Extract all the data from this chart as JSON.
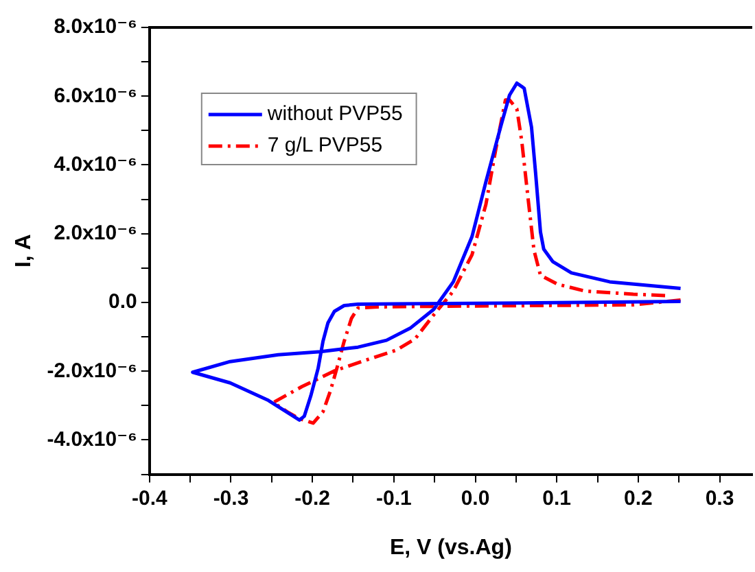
{
  "chart_data": {
    "type": "line",
    "xlabel": "E, V (vs.Ag)",
    "ylabel": "I, A",
    "xlim": [
      -0.4,
      0.34
    ],
    "ylim": [
      -5e-06,
      8e-06
    ],
    "xticks": [
      -0.4,
      {
        "value": -0.35,
        "label": null
      },
      -0.3,
      {
        "value": -0.25,
        "label": null
      },
      -0.2,
      {
        "value": -0.15,
        "label": null
      },
      -0.1,
      {
        "value": -0.05,
        "label": null
      },
      {
        "value": 0,
        "label": "0.0"
      },
      {
        "value": 0.05,
        "label": null
      },
      0.1,
      {
        "value": 0.15,
        "label": null
      },
      0.2,
      {
        "value": 0.25,
        "label": null
      },
      0.3
    ],
    "yticks": [
      {
        "value": -5e-06,
        "label": null
      },
      {
        "value": -4e-06,
        "label": "-4.0x10⁻⁶"
      },
      {
        "value": -3e-06,
        "label": null
      },
      {
        "value": -2e-06,
        "label": "-2.0x10⁻⁶"
      },
      {
        "value": -1e-06,
        "label": null
      },
      {
        "value": 0,
        "label": "0.0"
      },
      {
        "value": 1e-06,
        "label": null
      },
      {
        "value": 2e-06,
        "label": "2.0x10⁻⁶"
      },
      {
        "value": 3e-06,
        "label": null
      },
      {
        "value": 4e-06,
        "label": "4.0x10⁻⁶"
      },
      {
        "value": 5e-06,
        "label": null
      },
      {
        "value": 6e-06,
        "label": "6.0x10⁻⁶"
      },
      {
        "value": 7e-06,
        "label": null
      },
      {
        "value": 8e-06,
        "label": "8.0x10⁻⁶"
      }
    ],
    "grid": false,
    "legend": "top left",
    "marker": "none",
    "series": [
      {
        "name": "without PVP55",
        "color": "#0000ff",
        "line_style": "solid",
        "x": [
          0.252,
          0.077,
          -0.097,
          -0.144,
          -0.161,
          -0.173,
          -0.181,
          -0.187,
          -0.193,
          -0.202,
          -0.21,
          -0.216,
          -0.254,
          -0.301,
          -0.347,
          -0.301,
          -0.242,
          -0.19,
          -0.144,
          -0.109,
          -0.08,
          -0.051,
          -0.027,
          -0.004,
          0.013,
          0.031,
          0.042,
          0.051,
          0.06,
          0.069,
          0.074,
          0.08,
          0.084,
          0.095,
          0.118,
          0.165,
          0.252
        ],
        "values": [
          3e-08,
          -1e-08,
          -4e-08,
          -5e-08,
          -9e-08,
          -2.6e-07,
          -6e-07,
          -1.13e-06,
          -1.92e-06,
          -2.72e-06,
          -3.31e-06,
          -3.42e-06,
          -2.85e-06,
          -2.34e-06,
          -2.03e-06,
          -1.72e-06,
          -1.52e-06,
          -1.43e-06,
          -1.3e-06,
          -1.1e-06,
          -7.5e-07,
          -2e-07,
          6e-07,
          1.92e-06,
          3.51e-06,
          5.1e-06,
          6.03e-06,
          6.38e-06,
          6.23e-06,
          5.1e-06,
          3.77e-06,
          2.05e-06,
          1.55e-06,
          1.19e-06,
          8.6e-07,
          6e-07,
          4.1e-07
        ]
      },
      {
        "name": "7 g/L PVP55",
        "color": "#ff0000",
        "line_style": "dashed",
        "x": [
          0.252,
          0.194,
          0.077,
          -0.039,
          -0.12,
          -0.144,
          -0.152,
          -0.161,
          -0.17,
          -0.178,
          -0.187,
          -0.199,
          -0.216,
          -0.231,
          -0.248,
          -0.213,
          -0.173,
          -0.132,
          -0.097,
          -0.074,
          -0.051,
          -0.027,
          -0.004,
          0.013,
          0.025,
          0.037,
          0.042,
          0.051,
          0.057,
          0.065,
          0.072,
          0.08,
          0.101,
          0.135,
          0.194,
          0.234
        ],
        "values": [
          7e-08,
          -7e-08,
          -9e-08,
          -1.1e-07,
          -1.3e-07,
          -1.6e-07,
          -4.6e-07,
          -1.13e-06,
          -1.92e-06,
          -2.58e-06,
          -3.18e-06,
          -3.51e-06,
          -3.38e-06,
          -3.18e-06,
          -2.91e-06,
          -2.45e-06,
          -1.99e-06,
          -1.66e-06,
          -1.39e-06,
          -1.06e-06,
          -3.6e-07,
          3.3e-07,
          1.39e-06,
          2.85e-06,
          4.44e-06,
          5.89e-06,
          5.89e-06,
          5.63e-06,
          4.7e-06,
          2.98e-06,
          1.52e-06,
          7.9e-07,
          5.3e-07,
          3.3e-07,
          2.4e-07,
          2e-07
        ]
      }
    ]
  }
}
